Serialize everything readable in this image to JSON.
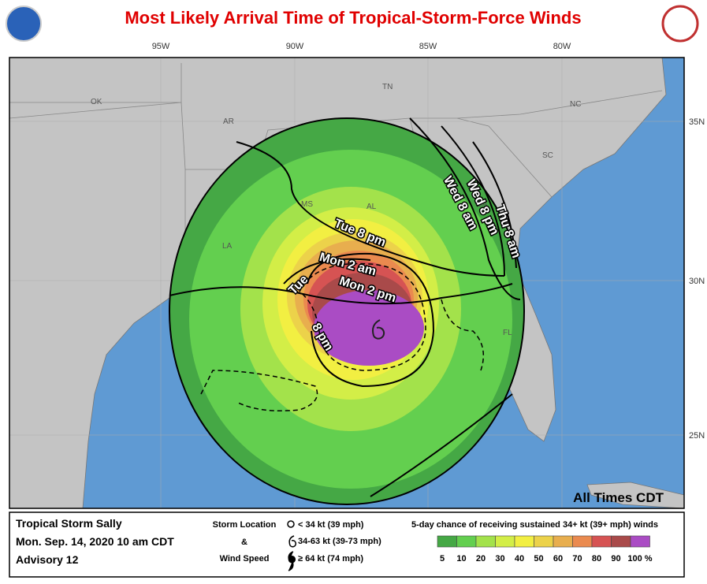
{
  "header": {
    "title": "Most Likely Arrival Time of Tropical-Storm-Force Winds"
  },
  "map": {
    "lon_labels": [
      "95W",
      "90W",
      "85W",
      "80W"
    ],
    "lat_labels": [
      "35N",
      "30N",
      "25N"
    ],
    "states": [
      "OK",
      "AR",
      "TN",
      "NC",
      "SC",
      "MS",
      "AL",
      "GA",
      "LA",
      "FL"
    ],
    "contour_labels": [
      "Tue 8 pm",
      "Wed 8 am",
      "Wed 8 pm",
      "Thu 8 am",
      "Mon 2 am",
      "Mon 2 pm",
      "Tue",
      "8 pm"
    ],
    "note": "All Times CDT"
  },
  "legend": {
    "storm": "Tropical Storm Sally",
    "issued": "Mon. Sep. 14, 2020  10 am CDT",
    "advisory": "Advisory 12",
    "symbol_title": [
      "Storm Location",
      "&",
      "Wind Speed"
    ],
    "symbols": [
      "< 34 kt (39 mph)",
      "34-63 kt (39-73 mph)",
      "≥ 64 kt (74 mph)"
    ],
    "scale_title": "5-day chance of receiving sustained 34+ kt (39+ mph) winds",
    "scale_labels": [
      "5",
      "10",
      "20",
      "30",
      "40",
      "50",
      "60",
      "70",
      "80",
      "90",
      "100 %"
    ],
    "scale_colors": [
      "#45a845",
      "#63cf4f",
      "#a3e24b",
      "#d3ee47",
      "#f2ef42",
      "#ecd24a",
      "#e8ae4e",
      "#ea8a4f",
      "#d65353",
      "#a94a4a",
      "#aa4cc4"
    ]
  }
}
